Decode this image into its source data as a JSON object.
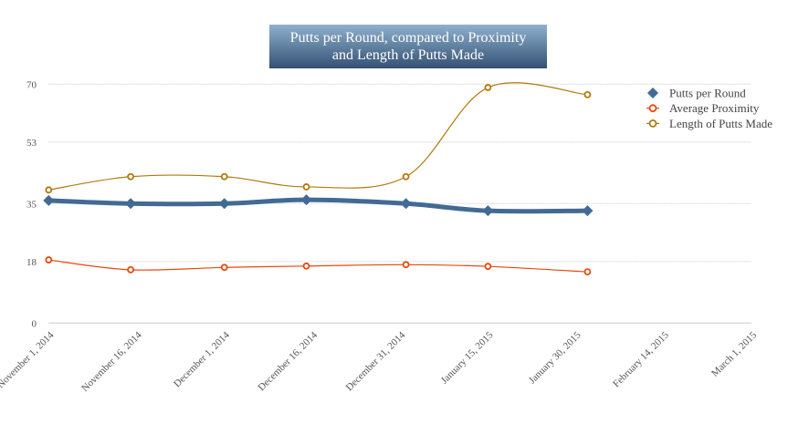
{
  "chart_data": {
    "type": "line",
    "title_lines": [
      "Putts per Round, compared to Proximity",
      "and Length of Putts Made"
    ],
    "xlabel": "",
    "ylabel": "",
    "x_ticks": [
      "2014-11-01",
      "2014-11-16",
      "2014-12-01",
      "2014-12-16",
      "2014-12-31",
      "2015-01-15",
      "2015-01-30",
      "2015-02-14",
      "2015-03-01"
    ],
    "x_tick_labels": [
      "November 1, 2014",
      "November 16, 2014",
      "December 1, 2014",
      "December 16, 2014",
      "December 31, 2014",
      "January 15, 2015",
      "January 30, 2015",
      "February 14, 2015",
      "March 1, 2015"
    ],
    "xlim": [
      "2014-11-01",
      "2015-03-01"
    ],
    "y_ticks": [
      0,
      18,
      35,
      53,
      70
    ],
    "ylim": [
      0,
      70
    ],
    "grid": true,
    "legend_position": "top-right",
    "x": [
      "2014-11-01",
      "2014-11-15",
      "2014-12-01",
      "2014-12-15",
      "2015-01-01",
      "2015-01-15",
      "2015-02-01"
    ],
    "series": [
      {
        "name": "Putts per Round",
        "color": "#426a94",
        "marker": "diamond",
        "values": [
          35.9,
          35.0,
          35.0,
          36.1,
          35.0,
          32.9,
          32.9
        ]
      },
      {
        "name": "Average Proximity",
        "color": "#e8490f",
        "marker": "open-circle",
        "values": [
          18.5,
          15.6,
          16.3,
          16.7,
          17.1,
          16.6,
          15.0
        ]
      },
      {
        "name": "Length of Putts Made",
        "color": "#b07a0c",
        "marker": "open-circle",
        "values": [
          39.0,
          42.9,
          42.9,
          39.9,
          42.9,
          69.0,
          66.9
        ]
      }
    ]
  }
}
